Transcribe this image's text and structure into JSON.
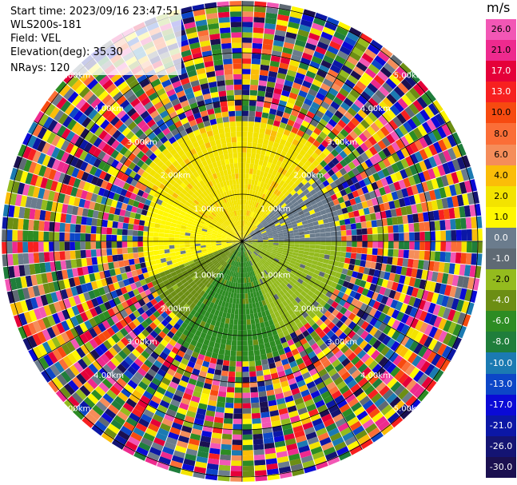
{
  "header": {
    "start_time": "Start time: 2023/09/16 23:47:51",
    "instrument": "WLS200s-181",
    "field": "Field: VEL",
    "elevation": "Elevation(deg): 35.30",
    "nrays": "NRays: 120"
  },
  "colorbar": {
    "unit": "m/s",
    "labels": [
      "26.0",
      "21.0",
      "17.0",
      "13.0",
      "10.0",
      "8.0",
      "6.0",
      "4.0",
      "2.0",
      "1.0",
      "0.0",
      "-1.0",
      "-2.0",
      "-4.0",
      "-6.0",
      "-8.0",
      "-10.0",
      "-13.0",
      "-17.0",
      "-21.0",
      "-26.0",
      "-30.0"
    ],
    "colors": [
      "#f257b5",
      "#ee2a8e",
      "#e50039",
      "#f72020",
      "#f74a10",
      "#fb6e37",
      "#f58d5a",
      "#fbbd08",
      "#f3e300",
      "#fff700",
      "#6b7c8d",
      "#5f6a74",
      "#94bb1e",
      "#6c8e14",
      "#2d8c23",
      "#1f7e3b",
      "#1b7ab2",
      "#0c46c7",
      "#0a0ad6",
      "#0b17a6",
      "#141473",
      "#1b1050"
    ]
  },
  "chart_data": {
    "type": "ppi",
    "field": "VEL",
    "nrays": 120,
    "range_ring_labels": [
      "1.00km",
      "2.00km",
      "3.00km",
      "4.00km",
      "5.00km"
    ],
    "range_rings_km": [
      1,
      2,
      3,
      4,
      5
    ],
    "max_range_km": 5,
    "azimuth_spokes_deg": [
      0,
      30,
      60,
      90,
      120,
      150,
      180,
      210,
      240,
      270,
      300,
      330
    ],
    "sectors": [
      {
        "az_from": 300,
        "az_to": 45,
        "range_km": [
          0,
          2.5
        ],
        "velocity_ms": 2.0
      },
      {
        "az_from": 45,
        "az_to": 90,
        "range_km": [
          0,
          2.0
        ],
        "velocity_ms": 0.0
      },
      {
        "az_from": 90,
        "az_to": 160,
        "range_km": [
          0,
          2.2
        ],
        "velocity_ms": -2.0
      },
      {
        "az_from": 160,
        "az_to": 215,
        "range_km": [
          0,
          2.6
        ],
        "velocity_ms": -6.0
      },
      {
        "az_from": 215,
        "az_to": 250,
        "range_km": [
          0,
          2.0
        ],
        "velocity_ms": -4.0
      },
      {
        "az_from": 250,
        "az_to": 300,
        "range_km": [
          0,
          2.0
        ],
        "velocity_ms": 1.0
      }
    ],
    "noise_region_km": [
      2.5,
      5.1
    ]
  }
}
